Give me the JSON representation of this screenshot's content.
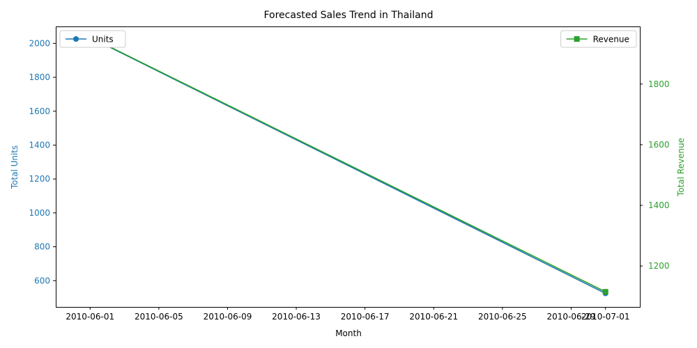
{
  "chart_data": {
    "type": "line",
    "title": "Forecasted Sales Trend in Thailand",
    "xlabel": "Month",
    "x": [
      "2010-06-01",
      "2010-07-01"
    ],
    "x_ticks": [
      "2010-06-01",
      "2010-06-05",
      "2010-06-09",
      "2010-06-13",
      "2010-06-17",
      "2010-06-21",
      "2010-06-25",
      "2010-06-29",
      "2010-07-01"
    ],
    "xlim": [
      "2010-05-30",
      "2010-07-03"
    ],
    "left_axis": {
      "label": "Total Units",
      "color": "#1f77b4",
      "ylim": [
        445,
        2100
      ],
      "ticks": [
        600,
        800,
        1000,
        1200,
        1400,
        1600,
        1800,
        2000
      ]
    },
    "right_axis": {
      "label": "Total Revenue",
      "color": "#2ca02c",
      "ylim": [
        1065,
        1990
      ],
      "ticks": [
        1200,
        1400,
        1600,
        1800
      ]
    },
    "series": [
      {
        "name": "Units",
        "axis": "left",
        "color": "#1f77b4",
        "marker": "circle",
        "values": [
          2035,
          525
        ]
      },
      {
        "name": "Revenue",
        "axis": "right",
        "color": "#2ca02c",
        "marker": "square",
        "values": [
          1955,
          1115
        ]
      }
    ],
    "legends": {
      "left": {
        "placement": "upper-left",
        "entries": [
          "Units"
        ]
      },
      "right": {
        "placement": "upper-right",
        "entries": [
          "Revenue"
        ]
      }
    },
    "grid": false
  }
}
